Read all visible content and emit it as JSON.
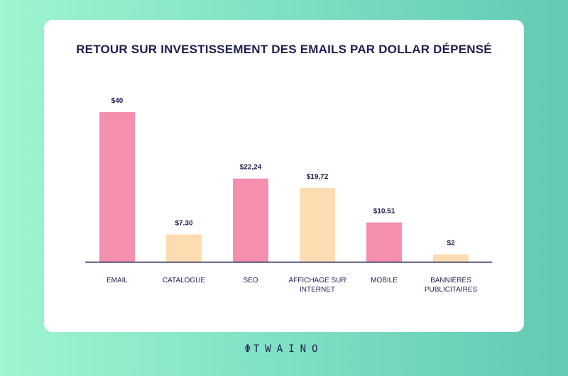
{
  "chart_data": {
    "type": "bar",
    "title": "RETOUR SUR INVESTISSEMENT DES EMAILS PAR DOLLAR DÉPENSÉ",
    "categories": [
      [
        "EMAIL"
      ],
      [
        "CATALOGUE"
      ],
      [
        "SEO"
      ],
      [
        "AFFICHAGE SUR",
        "INTERNET"
      ],
      [
        "MOBILE"
      ],
      [
        "BANNIÈRES",
        "PUBLICITAIRES"
      ]
    ],
    "values": [
      40,
      7.3,
      22.24,
      19.72,
      10.51,
      2
    ],
    "data_labels": [
      "$40",
      "$7.30",
      "$22,24",
      "$19,72",
      "$10.51",
      "$2"
    ],
    "colors": [
      "#f48fae",
      "#fedcb2",
      "#f48fae",
      "#fedcb2",
      "#f48fae",
      "#fedcb2"
    ],
    "ylim": [
      0,
      40
    ],
    "grid": false,
    "axis_color": "#1d1f52",
    "label_color": "#1d1f52"
  },
  "logo": {
    "text": "TWAINO",
    "icon": "leaf-icon"
  }
}
